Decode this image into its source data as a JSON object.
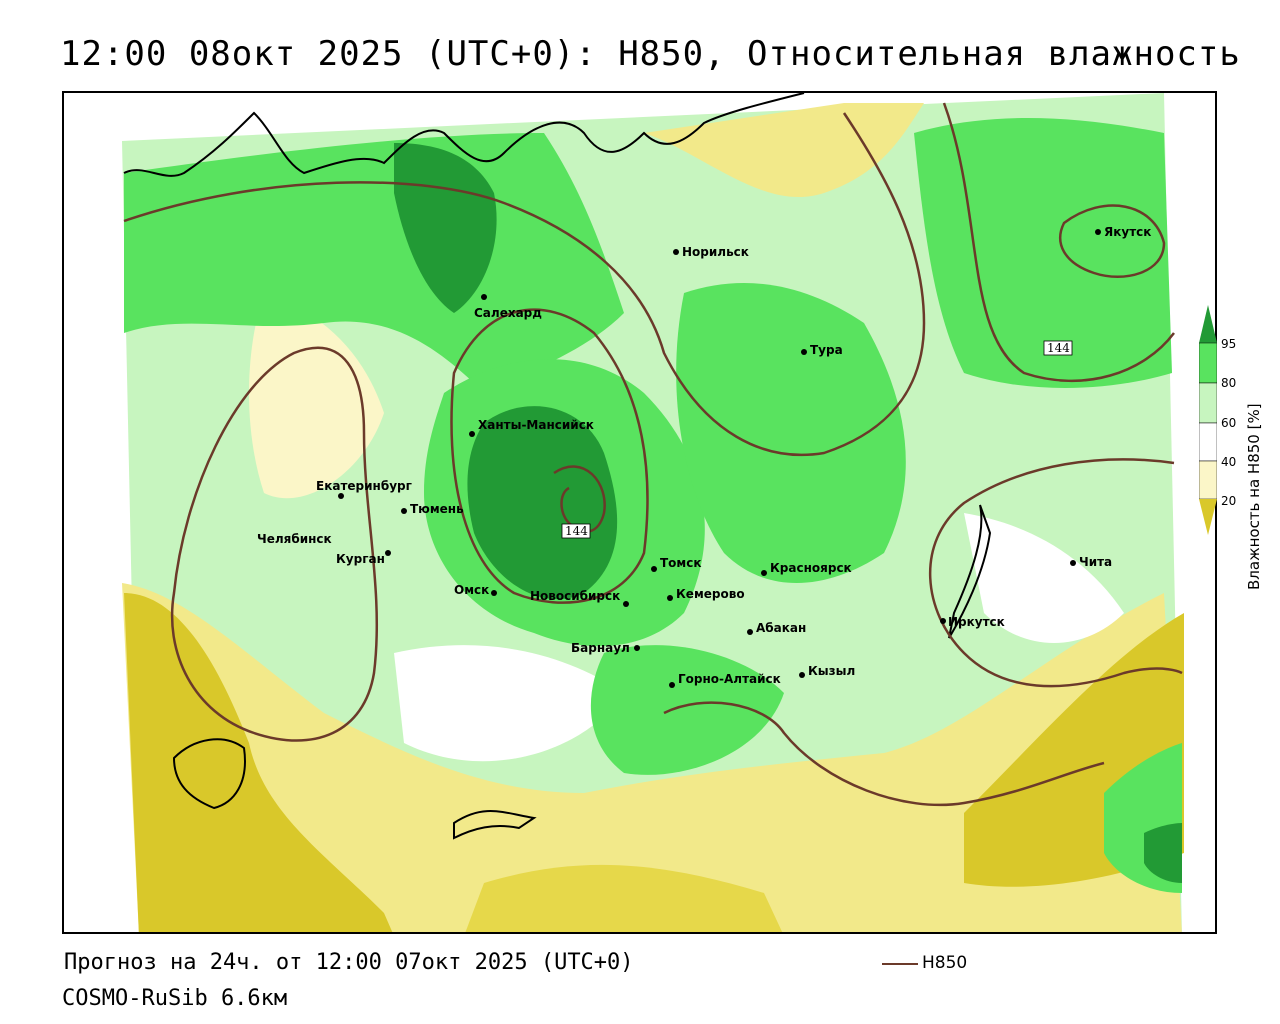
{
  "title": "12:00 08окт 2025 (UTC+0): H850, Относительная влажность",
  "footer": {
    "forecast": "Прогноз на 24ч. от 12:00 07окт 2025 (UTC+0)",
    "model": "COSMO-RuSib 6.6км",
    "line_legend": "H850"
  },
  "legend": {
    "label": "Влажность на H850 [%]",
    "ticks": [
      "95",
      "80",
      "60",
      "40",
      "20"
    ],
    "colors": {
      "very_dry": "#d9c82a",
      "dry": "#f2e98a",
      "light_dry": "#fbf6c8",
      "neutral": "#ffffff",
      "light_wet": "#c7f5bf",
      "wet": "#59e35f",
      "very_wet": "#229a35"
    }
  },
  "isohypse_labels": [
    "144",
    "144"
  ],
  "cities": [
    {
      "name": "Якутск"
    },
    {
      "name": "Норильск"
    },
    {
      "name": "Салехард"
    },
    {
      "name": "Тура"
    },
    {
      "name": "Ханты-Мансийск"
    },
    {
      "name": "Екатеринбург"
    },
    {
      "name": "Тюмень"
    },
    {
      "name": "Челябинск"
    },
    {
      "name": "Курган"
    },
    {
      "name": "Омск"
    },
    {
      "name": "Новосибирск"
    },
    {
      "name": "Томск"
    },
    {
      "name": "Кемерово"
    },
    {
      "name": "Красноярск"
    },
    {
      "name": "Барнаул"
    },
    {
      "name": "Абакан"
    },
    {
      "name": "Иркутск"
    },
    {
      "name": "Чита"
    },
    {
      "name": "Горно-Алтайск"
    },
    {
      "name": "Кызыл"
    }
  ]
}
